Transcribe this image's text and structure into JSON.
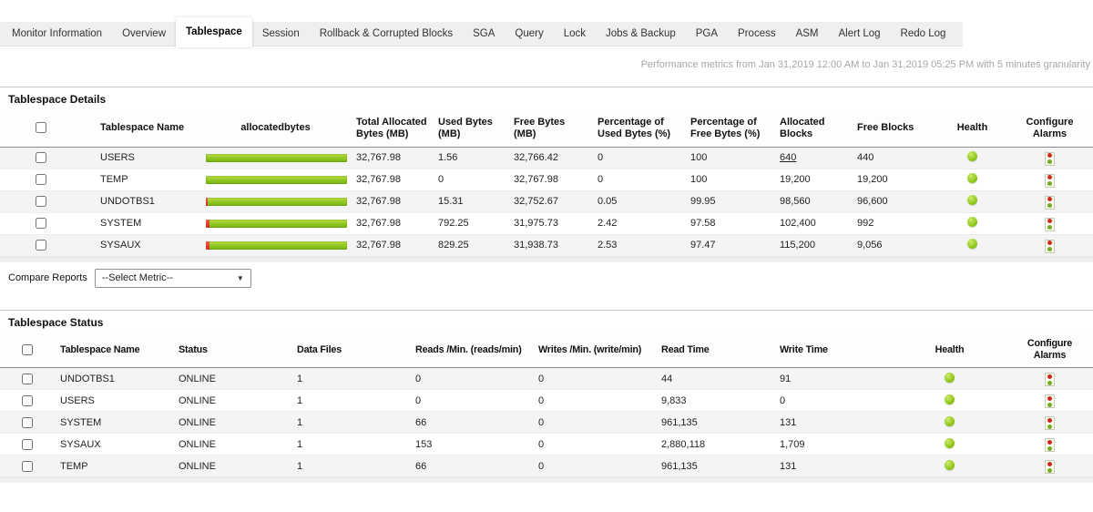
{
  "tab_bar": {
    "tabs": [
      "Monitor Information",
      "Overview",
      "Tablespace",
      "Session",
      "Rollback & Corrupted Blocks",
      "SGA",
      "Query",
      "Lock",
      "Jobs & Backup",
      "PGA",
      "Process",
      "ASM",
      "Alert Log",
      "Redo Log"
    ],
    "active_tab": "Tablespace"
  },
  "performance_note": "Performance metrics from Jan 31,2019 12:00 AM to Jan 31,2019 05:25 PM with 5 minutes granularity",
  "tablespace_details": {
    "title": "Tablespace Details",
    "columns": {
      "name": "Tablespace Name",
      "allocated_bar": "allocatedbytes",
      "total_allocated": "Total Allocated Bytes  (MB)",
      "used": "Used Bytes  (MB)",
      "free": "Free Bytes  (MB)",
      "pct_used": "Percentage of Used Bytes  (%)",
      "pct_free": "Percentage of Free Bytes  (%)",
      "alloc_blocks": "Allocated Blocks",
      "free_blocks": "Free Blocks",
      "health": "Health",
      "configure_alarms": "Configure Alarms"
    },
    "rows": [
      {
        "name": "USERS",
        "total_allocated": "32,767.98",
        "used": "1.56",
        "free": "32,766.42",
        "pct_used": "0",
        "pct_free": "100",
        "alloc_blocks": "640",
        "alloc_blocks_link": true,
        "free_blocks": "440",
        "health": "green",
        "bar_used_pct": 0
      },
      {
        "name": "TEMP",
        "total_allocated": "32,767.98",
        "used": "0",
        "free": "32,767.98",
        "pct_used": "0",
        "pct_free": "100",
        "alloc_blocks": "19,200",
        "alloc_blocks_link": false,
        "free_blocks": "19,200",
        "health": "green",
        "bar_used_pct": 0
      },
      {
        "name": "UNDOTBS1",
        "total_allocated": "32,767.98",
        "used": "15.31",
        "free": "32,752.67",
        "pct_used": "0.05",
        "pct_free": "99.95",
        "alloc_blocks": "98,560",
        "alloc_blocks_link": false,
        "free_blocks": "96,600",
        "health": "green",
        "bar_used_pct": 0.05
      },
      {
        "name": "SYSTEM",
        "total_allocated": "32,767.98",
        "used": "792.25",
        "free": "31,975.73",
        "pct_used": "2.42",
        "pct_free": "97.58",
        "alloc_blocks": "102,400",
        "alloc_blocks_link": false,
        "free_blocks": "992",
        "health": "green",
        "bar_used_pct": 2.42
      },
      {
        "name": "SYSAUX",
        "total_allocated": "32,767.98",
        "used": "829.25",
        "free": "31,938.73",
        "pct_used": "2.53",
        "pct_free": "97.47",
        "alloc_blocks": "115,200",
        "alloc_blocks_link": false,
        "free_blocks": "9,056",
        "health": "green",
        "bar_used_pct": 2.53
      }
    ]
  },
  "compare_reports": {
    "label": "Compare Reports",
    "selected_option": "--Select Metric--"
  },
  "tablespace_status": {
    "title": "Tablespace Status",
    "columns": {
      "name": "Tablespace Name",
      "status": "Status",
      "data_files": "Data Files",
      "reads_per_min": "Reads /Min.  (reads/min)",
      "writes_per_min": "Writes /Min.  (write/min)",
      "read_time": "Read Time",
      "write_time": "Write Time",
      "health": "Health",
      "configure_alarms": "Configure Alarms"
    },
    "rows": [
      {
        "name": "UNDOTBS1",
        "status": "ONLINE",
        "data_files": "1",
        "reads_per_min": "0",
        "writes_per_min": "0",
        "read_time": "44",
        "write_time": "91",
        "health": "green"
      },
      {
        "name": "USERS",
        "status": "ONLINE",
        "data_files": "1",
        "reads_per_min": "0",
        "writes_per_min": "0",
        "read_time": "9,833",
        "write_time": "0",
        "health": "green"
      },
      {
        "name": "SYSTEM",
        "status": "ONLINE",
        "data_files": "1",
        "reads_per_min": "66",
        "writes_per_min": "0",
        "read_time": "961,135",
        "write_time": "131",
        "health": "green"
      },
      {
        "name": "SYSAUX",
        "status": "ONLINE",
        "data_files": "1",
        "reads_per_min": "153",
        "writes_per_min": "0",
        "read_time": "2,880,118",
        "write_time": "1,709",
        "health": "green"
      },
      {
        "name": "TEMP",
        "status": "ONLINE",
        "data_files": "1",
        "reads_per_min": "66",
        "writes_per_min": "0",
        "read_time": "961,135",
        "write_time": "131",
        "health": "green"
      }
    ]
  },
  "colors": {
    "bar_green": "#8fc622",
    "bar_red": "#d2281a",
    "health_green": "#8cc417"
  }
}
